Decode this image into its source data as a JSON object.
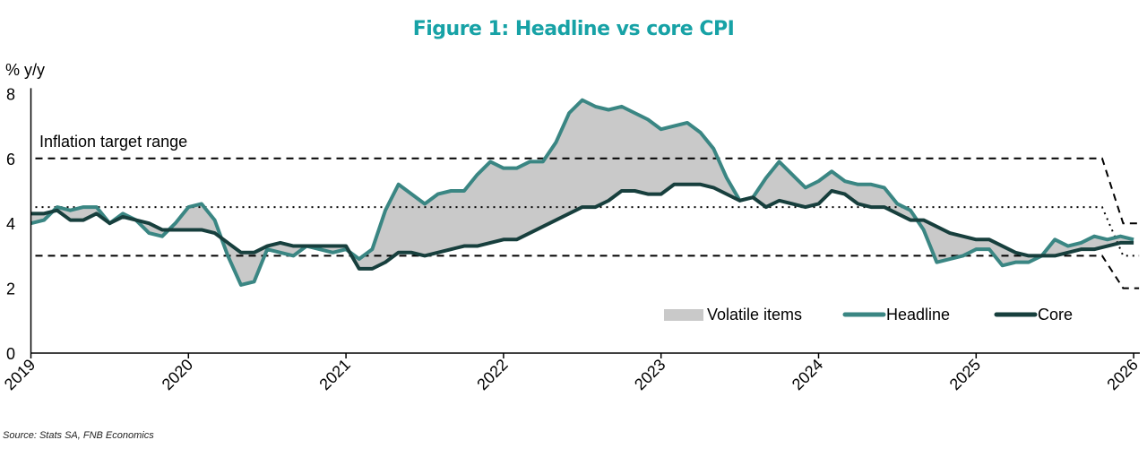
{
  "chart_data": {
    "type": "line",
    "title": "Figure 1: Headline vs core CPI",
    "ylabel": "% y/y",
    "xlabel": "",
    "ylim": [
      0,
      8
    ],
    "yticks": [
      "0",
      "2",
      "4",
      "6",
      "8"
    ],
    "xticks": [
      "2019",
      "2020",
      "2021",
      "2022",
      "2023",
      "2024",
      "2025",
      "2026"
    ],
    "x_start": "2019-01",
    "frequency": "monthly",
    "grid": false,
    "legend_position": "bottom-right",
    "annotation": "Inflation target range",
    "target_range": {
      "old": {
        "low": 3,
        "mid": 4.5,
        "high": 6,
        "until": "2025-10"
      },
      "new": {
        "low": 2,
        "mid": 3,
        "high": 4,
        "from": "2025-11"
      }
    },
    "series": [
      {
        "name": "Volatile items",
        "type": "area-between",
        "color": "#c9c9c9"
      },
      {
        "name": "Headline",
        "color": "#3a8683",
        "values": [
          4.0,
          4.1,
          4.5,
          4.4,
          4.5,
          4.5,
          4.0,
          4.3,
          4.1,
          3.7,
          3.6,
          4.0,
          4.5,
          4.6,
          4.1,
          3.0,
          2.1,
          2.2,
          3.2,
          3.1,
          3.0,
          3.3,
          3.2,
          3.1,
          3.2,
          2.9,
          3.2,
          4.4,
          5.2,
          4.9,
          4.6,
          4.9,
          5.0,
          5.0,
          5.5,
          5.9,
          5.7,
          5.7,
          5.9,
          5.9,
          6.5,
          7.4,
          7.8,
          7.6,
          7.5,
          7.6,
          7.4,
          7.2,
          6.9,
          7.0,
          7.1,
          6.8,
          6.3,
          5.4,
          4.7,
          4.8,
          5.4,
          5.9,
          5.5,
          5.1,
          5.3,
          5.6,
          5.3,
          5.2,
          5.2,
          5.1,
          4.6,
          4.4,
          3.8,
          2.8,
          2.9,
          3.0,
          3.2,
          3.2,
          2.7,
          2.8,
          2.8,
          3.0,
          3.5,
          3.3,
          3.4,
          3.6,
          3.5,
          3.6,
          3.5
        ]
      },
      {
        "name": "Core",
        "color": "#173f3d",
        "values": [
          4.3,
          4.3,
          4.4,
          4.1,
          4.1,
          4.3,
          4.0,
          4.2,
          4.1,
          4.0,
          3.8,
          3.8,
          3.8,
          3.8,
          3.7,
          3.4,
          3.1,
          3.1,
          3.3,
          3.4,
          3.3,
          3.3,
          3.3,
          3.3,
          3.3,
          2.6,
          2.6,
          2.8,
          3.1,
          3.1,
          3.0,
          3.1,
          3.2,
          3.3,
          3.3,
          3.4,
          3.5,
          3.5,
          3.7,
          3.9,
          4.1,
          4.3,
          4.5,
          4.5,
          4.7,
          5.0,
          5.0,
          4.9,
          4.9,
          5.2,
          5.2,
          5.2,
          5.1,
          4.9,
          4.7,
          4.8,
          4.5,
          4.7,
          4.6,
          4.5,
          4.6,
          5.0,
          4.9,
          4.6,
          4.5,
          4.5,
          4.3,
          4.1,
          4.1,
          3.9,
          3.7,
          3.6,
          3.5,
          3.5,
          3.3,
          3.1,
          3.0,
          3.0,
          3.0,
          3.1,
          3.2,
          3.2,
          3.3,
          3.4,
          3.4
        ]
      }
    ]
  },
  "source": "Source: Stats SA, FNB Economics"
}
